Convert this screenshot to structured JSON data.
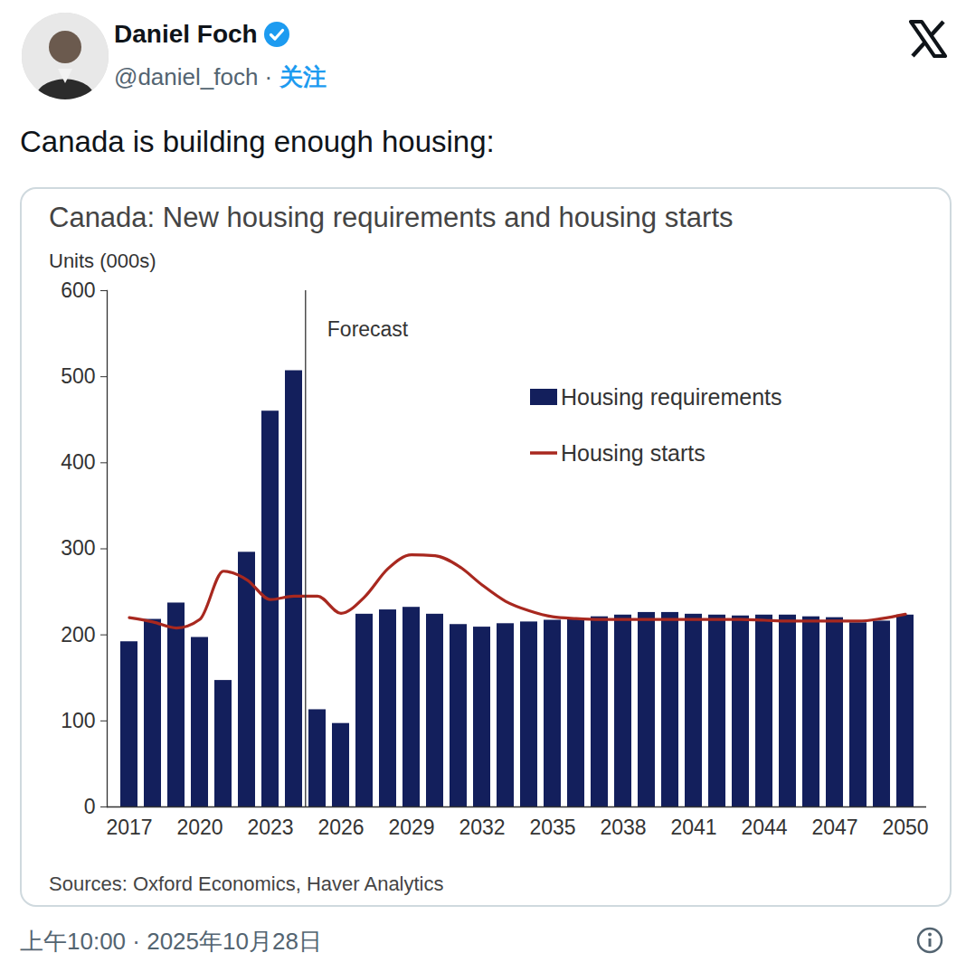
{
  "tweet": {
    "author": "Daniel Foch",
    "handle": "@daniel_foch",
    "separator": "·",
    "follow": "关注",
    "text": "Canada is building enough housing:",
    "timestamp": "上午10:00 · 2025年10月28日"
  },
  "chart_data": {
    "type": "bar",
    "title": "Canada: New housing requirements and housing starts",
    "y_label": "Units (000s)",
    "caption": "Sources: Oxford Economics, Haver Analytics",
    "categories": [
      "2017",
      null,
      null,
      "2020",
      null,
      null,
      "2023",
      null,
      null,
      "2026",
      null,
      null,
      "2029",
      null,
      null,
      "2032",
      null,
      null,
      "2035",
      null,
      null,
      "2038",
      null,
      null,
      "2041",
      null,
      null,
      "2044",
      null,
      null,
      "2047",
      null,
      null,
      "2050"
    ],
    "series": [
      {
        "name": "Housing requirements",
        "type": "bar",
        "color": "#131f5c",
        "values": [
          192,
          218,
          237,
          197,
          147,
          296,
          460,
          507,
          113,
          97,
          224,
          229,
          232,
          224,
          212,
          209,
          213,
          215,
          217,
          219,
          221,
          223,
          226,
          226,
          224,
          223,
          222,
          223,
          223,
          221,
          220,
          214,
          216,
          223
        ]
      },
      {
        "name": "Housing starts",
        "type": "line",
        "color": "#a8281f",
        "values": [
          220,
          215,
          208,
          218,
          274,
          264,
          241,
          245,
          245,
          225,
          244,
          277,
          293,
          292,
          280,
          258,
          239,
          228,
          221,
          219,
          218,
          218,
          218,
          218,
          218,
          218,
          218,
          217,
          216,
          216,
          216,
          216,
          219,
          224
        ]
      }
    ],
    "annotations": [
      {
        "text": "Forecast",
        "x": 8
      }
    ],
    "ylim": [
      0,
      600
    ],
    "yticks": [
      0,
      100,
      200,
      300,
      400,
      500,
      600
    ],
    "grid": false,
    "legend": "top-right"
  }
}
